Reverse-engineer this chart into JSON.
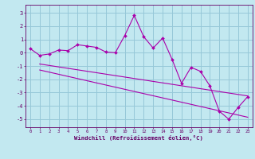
{
  "xlabel": "Windchill (Refroidissement éolien,°C)",
  "bg_color": "#c2e8f0",
  "grid_color": "#96c8d8",
  "line_color": "#aa00aa",
  "spine_color": "#660066",
  "xlim": [
    -0.5,
    23.5
  ],
  "ylim": [
    -5.6,
    3.6
  ],
  "yticks": [
    -5,
    -4,
    -3,
    -2,
    -1,
    0,
    1,
    2,
    3
  ],
  "xticks": [
    0,
    1,
    2,
    3,
    4,
    5,
    6,
    7,
    8,
    9,
    10,
    11,
    12,
    13,
    14,
    15,
    16,
    17,
    18,
    19,
    20,
    21,
    22,
    23
  ],
  "line1_x": [
    0,
    1,
    2,
    3,
    4,
    5,
    6,
    7,
    8,
    9,
    10,
    11,
    12,
    13,
    14,
    15,
    16,
    17,
    18,
    19,
    20,
    21,
    22,
    23
  ],
  "line1_y": [
    0.3,
    -0.2,
    -0.1,
    0.2,
    0.15,
    0.6,
    0.5,
    0.4,
    0.05,
    0.0,
    1.3,
    2.8,
    1.2,
    0.35,
    1.1,
    -0.5,
    -2.3,
    -1.1,
    -1.4,
    -2.5,
    -4.4,
    -5.0,
    -4.1,
    -3.3
  ],
  "line2_x": [
    1,
    23
  ],
  "line2_y": [
    -0.85,
    -3.25
  ],
  "line3_x": [
    1,
    23
  ],
  "line3_y": [
    -1.3,
    -4.85
  ]
}
